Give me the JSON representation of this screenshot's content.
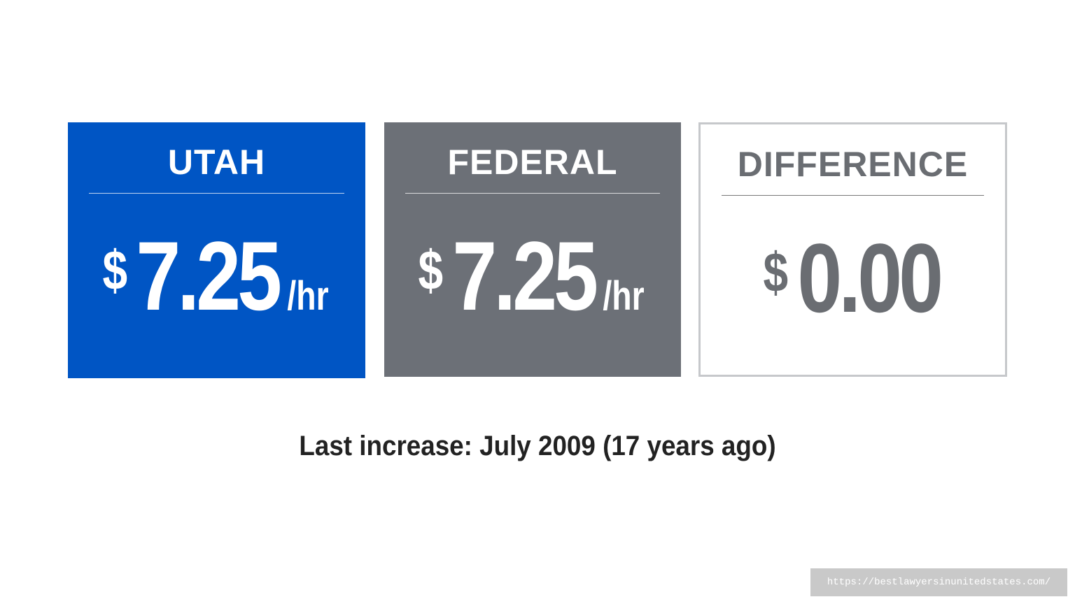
{
  "cards": [
    {
      "label": "UTAH",
      "currency": "$",
      "amount": "7.25",
      "unit": "/hr"
    },
    {
      "label": "FEDERAL",
      "currency": "$",
      "amount": "7.25",
      "unit": "/hr"
    },
    {
      "label": "DIFFERENCE",
      "currency": "$",
      "amount": "0.00"
    }
  ],
  "footer": "Last increase: July 2009 (17 years ago)",
  "watermark": "https://bestlawyersinunitedstates.com/"
}
